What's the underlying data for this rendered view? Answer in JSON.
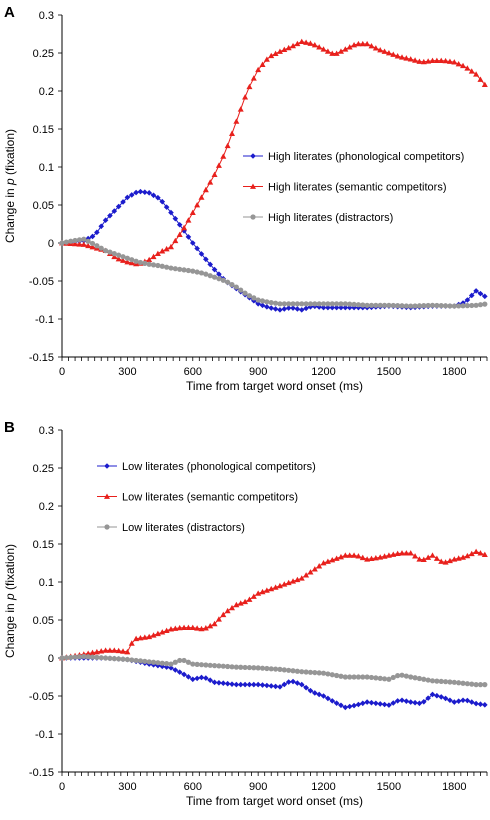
{
  "chart_data": [
    {
      "panel": "A",
      "type": "line",
      "xlabel": "Time from target word onset (ms)",
      "ylabel": [
        "Change in ",
        "p",
        " (fixation)"
      ],
      "xlim": [
        0,
        1950
      ],
      "ylim": [
        -0.15,
        0.3
      ],
      "x_ticks": [
        0,
        300,
        600,
        900,
        1200,
        1500,
        1800
      ],
      "y_ticks": [
        "0.3",
        "0.25",
        "0.2",
        "0.15",
        "0.1",
        "0.05",
        "0",
        "-0.05",
        "-0.1",
        "-0.15"
      ],
      "y_tick_values": [
        0.3,
        0.25,
        0.2,
        0.15,
        0.1,
        0.05,
        0,
        -0.05,
        -0.1,
        -0.15
      ],
      "grid": false,
      "legend_position": "center-right",
      "series": [
        {
          "name": "High literates (phonological competitors)",
          "color": "#1c1ccc",
          "marker": "diamond",
          "points": [
            [
              0,
              0
            ],
            [
              100,
              0.003
            ],
            [
              150,
              0.01
            ],
            [
              200,
              0.03
            ],
            [
              250,
              0.045
            ],
            [
              300,
              0.06
            ],
            [
              350,
              0.068
            ],
            [
              400,
              0.066
            ],
            [
              450,
              0.058
            ],
            [
              500,
              0.04
            ],
            [
              550,
              0.02
            ],
            [
              600,
              0
            ],
            [
              650,
              -0.018
            ],
            [
              700,
              -0.035
            ],
            [
              750,
              -0.05
            ],
            [
              800,
              -0.06
            ],
            [
              850,
              -0.07
            ],
            [
              900,
              -0.08
            ],
            [
              950,
              -0.085
            ],
            [
              1000,
              -0.088
            ],
            [
              1050,
              -0.085
            ],
            [
              1100,
              -0.088
            ],
            [
              1150,
              -0.083
            ],
            [
              1200,
              -0.085
            ],
            [
              1300,
              -0.085
            ],
            [
              1400,
              -0.085
            ],
            [
              1500,
              -0.083
            ],
            [
              1600,
              -0.085
            ],
            [
              1700,
              -0.083
            ],
            [
              1800,
              -0.083
            ],
            [
              1850,
              -0.078
            ],
            [
              1900,
              -0.063
            ],
            [
              1950,
              -0.072
            ]
          ]
        },
        {
          "name": "High literates (semantic competitors)",
          "color": "#e8201c",
          "marker": "triangle",
          "points": [
            [
              0,
              0
            ],
            [
              100,
              -0.002
            ],
            [
              200,
              -0.01
            ],
            [
              250,
              -0.02
            ],
            [
              300,
              -0.025
            ],
            [
              350,
              -0.028
            ],
            [
              400,
              -0.022
            ],
            [
              450,
              -0.012
            ],
            [
              500,
              -0.005
            ],
            [
              550,
              0.015
            ],
            [
              600,
              0.04
            ],
            [
              650,
              0.065
            ],
            [
              700,
              0.09
            ],
            [
              750,
              0.12
            ],
            [
              800,
              0.16
            ],
            [
              850,
              0.2
            ],
            [
              900,
              0.228
            ],
            [
              950,
              0.245
            ],
            [
              1000,
              0.252
            ],
            [
              1050,
              0.258
            ],
            [
              1100,
              0.265
            ],
            [
              1150,
              0.262
            ],
            [
              1200,
              0.255
            ],
            [
              1250,
              0.248
            ],
            [
              1300,
              0.255
            ],
            [
              1350,
              0.262
            ],
            [
              1400,
              0.262
            ],
            [
              1450,
              0.255
            ],
            [
              1500,
              0.25
            ],
            [
              1550,
              0.245
            ],
            [
              1600,
              0.242
            ],
            [
              1650,
              0.238
            ],
            [
              1700,
              0.24
            ],
            [
              1750,
              0.24
            ],
            [
              1800,
              0.238
            ],
            [
              1850,
              0.232
            ],
            [
              1900,
              0.222
            ],
            [
              1950,
              0.205
            ]
          ]
        },
        {
          "name": "High literates (distractors)",
          "color": "#969696",
          "marker": "circle",
          "points": [
            [
              0,
              0
            ],
            [
              50,
              0.003
            ],
            [
              100,
              0.005
            ],
            [
              150,
              -0.002
            ],
            [
              200,
              -0.01
            ],
            [
              250,
              -0.015
            ],
            [
              300,
              -0.02
            ],
            [
              350,
              -0.025
            ],
            [
              400,
              -0.028
            ],
            [
              450,
              -0.03
            ],
            [
              500,
              -0.033
            ],
            [
              550,
              -0.035
            ],
            [
              600,
              -0.037
            ],
            [
              650,
              -0.04
            ],
            [
              700,
              -0.045
            ],
            [
              750,
              -0.05
            ],
            [
              800,
              -0.058
            ],
            [
              850,
              -0.068
            ],
            [
              900,
              -0.075
            ],
            [
              950,
              -0.078
            ],
            [
              1000,
              -0.08
            ],
            [
              1100,
              -0.08
            ],
            [
              1200,
              -0.08
            ],
            [
              1300,
              -0.08
            ],
            [
              1400,
              -0.082
            ],
            [
              1500,
              -0.082
            ],
            [
              1600,
              -0.083
            ],
            [
              1700,
              -0.082
            ],
            [
              1800,
              -0.083
            ],
            [
              1900,
              -0.082
            ],
            [
              1950,
              -0.08
            ]
          ]
        }
      ]
    },
    {
      "panel": "B",
      "type": "line",
      "xlabel": "Time from target word onset (ms)",
      "ylabel": [
        "Change in ",
        "p",
        " (fixation)"
      ],
      "xlim": [
        0,
        1950
      ],
      "ylim": [
        -0.15,
        0.3
      ],
      "x_ticks": [
        0,
        300,
        600,
        900,
        1200,
        1500,
        1800
      ],
      "y_ticks": [
        "0.3",
        "0.25",
        "0.2",
        "0.15",
        "0.1",
        "0.05",
        "0",
        "-0.05",
        "-0.1",
        "-0.15"
      ],
      "y_tick_values": [
        0.3,
        0.25,
        0.2,
        0.15,
        0.1,
        0.05,
        0,
        -0.05,
        -0.1,
        -0.15
      ],
      "grid": false,
      "legend_position": "top-left",
      "series": [
        {
          "name": "Low literates (phonological competitors)",
          "color": "#1c1ccc",
          "marker": "diamond",
          "points": [
            [
              0,
              0
            ],
            [
              100,
              0
            ],
            [
              200,
              0
            ],
            [
              300,
              -0.002
            ],
            [
              400,
              -0.008
            ],
            [
              500,
              -0.013
            ],
            [
              550,
              -0.02
            ],
            [
              600,
              -0.028
            ],
            [
              650,
              -0.025
            ],
            [
              700,
              -0.032
            ],
            [
              800,
              -0.035
            ],
            [
              900,
              -0.035
            ],
            [
              1000,
              -0.038
            ],
            [
              1050,
              -0.03
            ],
            [
              1100,
              -0.035
            ],
            [
              1150,
              -0.045
            ],
            [
              1200,
              -0.05
            ],
            [
              1250,
              -0.058
            ],
            [
              1300,
              -0.065
            ],
            [
              1350,
              -0.062
            ],
            [
              1400,
              -0.058
            ],
            [
              1500,
              -0.062
            ],
            [
              1550,
              -0.055
            ],
            [
              1600,
              -0.058
            ],
            [
              1650,
              -0.06
            ],
            [
              1700,
              -0.048
            ],
            [
              1750,
              -0.052
            ],
            [
              1800,
              -0.058
            ],
            [
              1850,
              -0.055
            ],
            [
              1900,
              -0.06
            ],
            [
              1950,
              -0.062
            ]
          ]
        },
        {
          "name": "Low literates (semantic competitors)",
          "color": "#e8201c",
          "marker": "triangle",
          "points": [
            [
              0,
              0
            ],
            [
              100,
              0.005
            ],
            [
              200,
              0.01
            ],
            [
              250,
              0.01
            ],
            [
              300,
              0.008
            ],
            [
              330,
              0.025
            ],
            [
              400,
              0.028
            ],
            [
              450,
              0.033
            ],
            [
              500,
              0.038
            ],
            [
              550,
              0.04
            ],
            [
              600,
              0.04
            ],
            [
              650,
              0.038
            ],
            [
              700,
              0.045
            ],
            [
              750,
              0.06
            ],
            [
              800,
              0.07
            ],
            [
              850,
              0.075
            ],
            [
              900,
              0.085
            ],
            [
              950,
              0.09
            ],
            [
              1000,
              0.095
            ],
            [
              1050,
              0.1
            ],
            [
              1100,
              0.105
            ],
            [
              1150,
              0.115
            ],
            [
              1200,
              0.125
            ],
            [
              1250,
              0.13
            ],
            [
              1300,
              0.135
            ],
            [
              1350,
              0.135
            ],
            [
              1400,
              0.13
            ],
            [
              1450,
              0.132
            ],
            [
              1500,
              0.135
            ],
            [
              1550,
              0.138
            ],
            [
              1600,
              0.138
            ],
            [
              1650,
              0.128
            ],
            [
              1700,
              0.135
            ],
            [
              1750,
              0.125
            ],
            [
              1800,
              0.13
            ],
            [
              1850,
              0.133
            ],
            [
              1900,
              0.14
            ],
            [
              1950,
              0.135
            ]
          ]
        },
        {
          "name": "Low literates (distractors)",
          "color": "#969696",
          "marker": "circle",
          "points": [
            [
              0,
              0
            ],
            [
              100,
              0.002
            ],
            [
              200,
              0
            ],
            [
              300,
              -0.002
            ],
            [
              400,
              -0.005
            ],
            [
              500,
              -0.008
            ],
            [
              550,
              -0.002
            ],
            [
              600,
              -0.008
            ],
            [
              700,
              -0.01
            ],
            [
              800,
              -0.012
            ],
            [
              900,
              -0.013
            ],
            [
              1000,
              -0.015
            ],
            [
              1100,
              -0.018
            ],
            [
              1200,
              -0.02
            ],
            [
              1300,
              -0.025
            ],
            [
              1400,
              -0.025
            ],
            [
              1500,
              -0.028
            ],
            [
              1550,
              -0.022
            ],
            [
              1600,
              -0.025
            ],
            [
              1700,
              -0.03
            ],
            [
              1800,
              -0.032
            ],
            [
              1900,
              -0.035
            ],
            [
              1950,
              -0.035
            ]
          ]
        }
      ]
    }
  ]
}
